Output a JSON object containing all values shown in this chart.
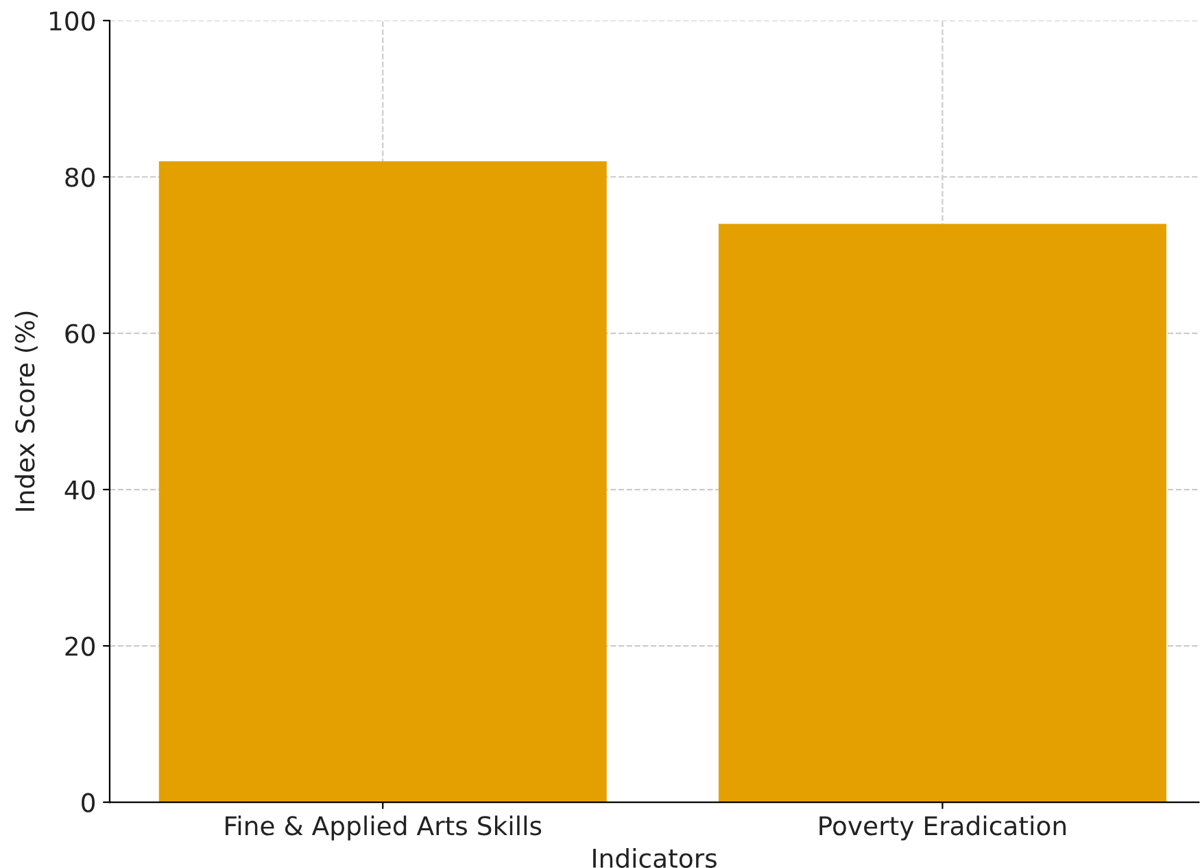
{
  "chart_data": {
    "type": "bar",
    "xlabel": "Indicators",
    "ylabel": "Index Score (%)",
    "categories": [
      "Fine & Applied Arts Skills",
      "Poverty Eradication"
    ],
    "values": [
      82,
      74
    ],
    "color": "#e3a000",
    "ylim": [
      0,
      100
    ],
    "yticks": [
      0,
      20,
      40,
      60,
      80,
      100
    ],
    "grid": true
  }
}
